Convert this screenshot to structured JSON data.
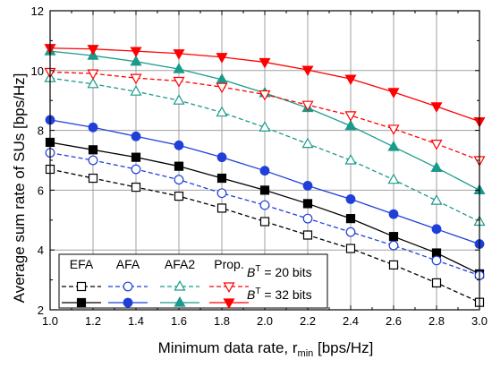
{
  "chart_data": {
    "type": "line",
    "xlabel": "Minimum data rate, r",
    "xlabel_sub": "min",
    "xlabel_unit": " [bps/Hz]",
    "ylabel": "Average sum rate of SUs [bps/Hz]",
    "xlim": [
      1.0,
      3.0
    ],
    "ylim": [
      2,
      12
    ],
    "grid": true,
    "x": [
      1.0,
      1.2,
      1.4,
      1.6,
      1.8,
      2.0,
      2.2,
      2.4,
      2.6,
      2.8,
      3.0
    ],
    "xtick_labels": [
      "1.0",
      "1.2",
      "1.4",
      "1.6",
      "1.8",
      "2.0",
      "2.2",
      "2.4",
      "2.6",
      "2.8",
      "3.0"
    ],
    "ytick_values": [
      2,
      4,
      6,
      8,
      10,
      12
    ],
    "ytick_labels": [
      "2",
      "4",
      "6",
      "8",
      "10",
      "12"
    ],
    "legend": {
      "placement": "bottom-left",
      "column_headers": [
        "EFA",
        "AFA",
        "AFA2",
        "Prop."
      ],
      "row_label_b": "B",
      "row_label_sup": "T",
      "row_labels": [
        " = 20 bits",
        " = 32 bits"
      ]
    },
    "series": [
      {
        "method": "EFA",
        "bits": "20 bits",
        "color": "#000000",
        "marker": "square",
        "filled": false,
        "dashed": true,
        "values": [
          6.7,
          6.4,
          6.1,
          5.8,
          5.4,
          4.95,
          4.5,
          4.05,
          3.5,
          2.9,
          2.25
        ]
      },
      {
        "method": "EFA",
        "bits": "32 bits",
        "color": "#000000",
        "marker": "square",
        "filled": true,
        "dashed": false,
        "values": [
          7.6,
          7.35,
          7.1,
          6.8,
          6.4,
          6.0,
          5.55,
          5.05,
          4.45,
          3.9,
          3.2
        ]
      },
      {
        "method": "AFA",
        "bits": "20 bits",
        "color": "#1f3fd8",
        "marker": "circle",
        "filled": false,
        "dashed": true,
        "values": [
          7.25,
          7.0,
          6.7,
          6.35,
          5.9,
          5.5,
          5.05,
          4.6,
          4.15,
          3.65,
          3.15
        ]
      },
      {
        "method": "AFA",
        "bits": "32 bits",
        "color": "#1f3fd8",
        "marker": "circle",
        "filled": true,
        "dashed": false,
        "values": [
          8.35,
          8.1,
          7.8,
          7.5,
          7.1,
          6.65,
          6.15,
          5.7,
          5.2,
          4.7,
          4.2
        ]
      },
      {
        "method": "AFA2",
        "bits": "20 bits",
        "color": "#1a9a8a",
        "marker": "triangle-up",
        "filled": false,
        "dashed": true,
        "values": [
          9.75,
          9.55,
          9.3,
          9.0,
          8.6,
          8.1,
          7.55,
          7.0,
          6.35,
          5.65,
          4.95
        ]
      },
      {
        "method": "AFA2",
        "bits": "32 bits",
        "color": "#1a9a8a",
        "marker": "triangle-up",
        "filled": true,
        "dashed": false,
        "values": [
          10.65,
          10.5,
          10.3,
          10.05,
          9.7,
          9.25,
          8.75,
          8.15,
          7.45,
          6.75,
          6.0
        ]
      },
      {
        "method": "Prop.",
        "bits": "20 bits",
        "color": "#ff0000",
        "marker": "triangle-down",
        "filled": false,
        "dashed": true,
        "values": [
          9.95,
          9.9,
          9.75,
          9.65,
          9.45,
          9.2,
          8.85,
          8.5,
          8.05,
          7.55,
          7.0
        ]
      },
      {
        "method": "Prop.",
        "bits": "32 bits",
        "color": "#ff0000",
        "marker": "triangle-down",
        "filled": true,
        "dashed": false,
        "values": [
          10.75,
          10.72,
          10.65,
          10.57,
          10.45,
          10.28,
          10.02,
          9.72,
          9.28,
          8.8,
          8.3
        ]
      }
    ]
  }
}
